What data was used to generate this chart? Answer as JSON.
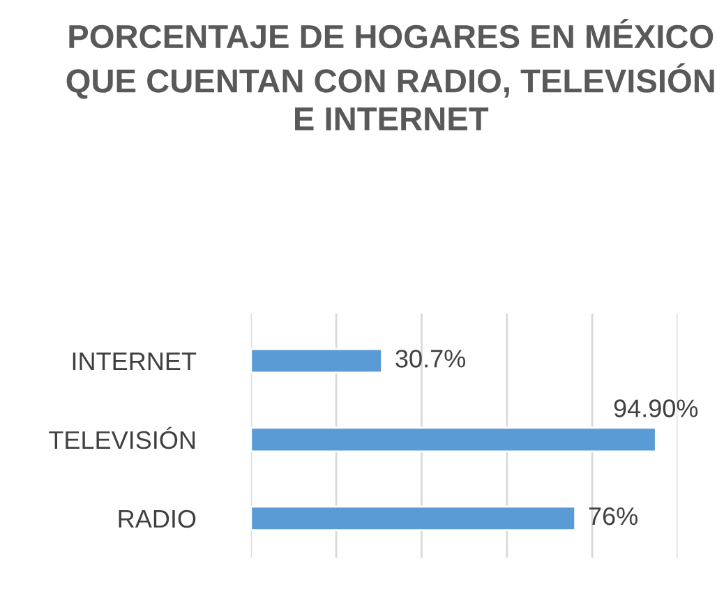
{
  "chart_data": {
    "type": "bar",
    "orientation": "horizontal",
    "title": "PORCENTAJE DE HOGARES EN MÉXICO QUE CUENTAN CON RADIO, TELEVISIÓN E INTERNET",
    "categories": [
      "INTERNET",
      "TELEVISIÓN",
      "RADIO"
    ],
    "values": [
      30.7,
      94.9,
      76
    ],
    "value_labels": [
      "30.7%",
      "94.90%",
      "76%"
    ],
    "color": "#5b9bd5",
    "xlim": [
      0,
      100
    ],
    "xticks": [
      {
        "value": 0,
        "label": null
      },
      {
        "value": 20,
        "label": null
      },
      {
        "value": 40,
        "label": null
      },
      {
        "value": 60,
        "label": null
      },
      {
        "value": 80,
        "label": null
      },
      {
        "value": 100,
        "label": null
      }
    ],
    "grid": "x",
    "tick_labels": "y"
  }
}
